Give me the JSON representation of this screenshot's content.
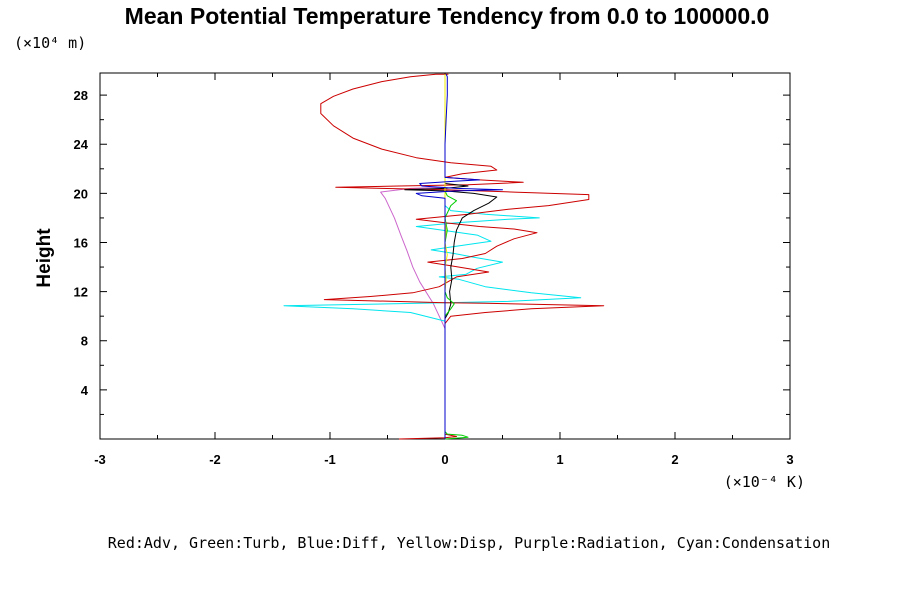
{
  "chart_data": {
    "type": "line",
    "title": "Mean Potential Temperature Tendency from 0.0 to 100000.0",
    "ylabel": "Height",
    "y_unit_label": "(×10⁴ m)",
    "x_unit_label": "(×10⁻⁴ K)",
    "legend_text": "Red:Adv, Green:Turb, Blue:Diff, Yellow:Disp, Purple:Radiation, Cyan:Condensation",
    "xlim": [
      -3,
      3
    ],
    "ylim": [
      0,
      29.8
    ],
    "x_ticks": [
      {
        "value": -3,
        "label": "-3"
      },
      {
        "value": -2,
        "label": "-2"
      },
      {
        "value": -1,
        "label": "-1"
      },
      {
        "value": 0,
        "label": "0"
      },
      {
        "value": 1,
        "label": "1"
      },
      {
        "value": 2,
        "label": "2"
      },
      {
        "value": 3,
        "label": "3"
      }
    ],
    "y_ticks": [
      {
        "value": 4,
        "label": "4"
      },
      {
        "value": 8,
        "label": "8"
      },
      {
        "value": 12,
        "label": "12"
      },
      {
        "value": 16,
        "label": "16"
      },
      {
        "value": 20,
        "label": "20"
      },
      {
        "value": 24,
        "label": "24"
      },
      {
        "value": 28,
        "label": "28"
      }
    ],
    "series": [
      {
        "name": "Purple:Radiation",
        "color": "#cc66cc",
        "points": [
          [
            0,
            0
          ],
          [
            0,
            9
          ],
          [
            -0.1,
            11
          ],
          [
            -0.22,
            12.8
          ],
          [
            -0.28,
            14
          ],
          [
            -0.33,
            15.3
          ],
          [
            -0.38,
            16.5
          ],
          [
            -0.44,
            18
          ],
          [
            -0.52,
            19.6
          ],
          [
            -0.56,
            20.1
          ],
          [
            -0.3,
            20.4
          ],
          [
            0,
            20.5
          ],
          [
            0,
            29.7
          ]
        ]
      },
      {
        "name": "Cyan:Condensation",
        "color": "#00e5ee",
        "points": [
          [
            0,
            0
          ],
          [
            0,
            9.6
          ],
          [
            -0.3,
            10.3
          ],
          [
            -0.8,
            10.6
          ],
          [
            -1.4,
            10.85
          ],
          [
            -0.5,
            11
          ],
          [
            0,
            11.1
          ],
          [
            0.55,
            11.2
          ],
          [
            1.18,
            11.5
          ],
          [
            0.75,
            11.9
          ],
          [
            0.35,
            12.4
          ],
          [
            0.12,
            13
          ],
          [
            -0.05,
            13.2
          ],
          [
            0.18,
            13.4
          ],
          [
            0.28,
            13.9
          ],
          [
            0.5,
            14.4
          ],
          [
            0.25,
            14.8
          ],
          [
            0.08,
            15.1
          ],
          [
            -0.12,
            15.4
          ],
          [
            0.18,
            15.8
          ],
          [
            0.4,
            16.1
          ],
          [
            0.28,
            16.6
          ],
          [
            0.05,
            16.9
          ],
          [
            -0.25,
            17.3
          ],
          [
            0.1,
            17.6
          ],
          [
            0.55,
            17.9
          ],
          [
            0.82,
            18
          ],
          [
            0.35,
            18.3
          ],
          [
            0.05,
            18.6
          ],
          [
            0,
            19
          ],
          [
            0,
            29.7
          ]
        ]
      },
      {
        "name": "Red:Adv",
        "color": "#cc0000",
        "points": [
          [
            -0.4,
            0
          ],
          [
            0,
            0.1
          ],
          [
            0.1,
            0.2
          ],
          [
            0,
            0.4
          ],
          [
            0,
            9.4
          ],
          [
            0.05,
            10
          ],
          [
            0.35,
            10.3
          ],
          [
            0.75,
            10.6
          ],
          [
            1.38,
            10.85
          ],
          [
            0.35,
            11.05
          ],
          [
            0,
            11.1
          ],
          [
            -1.05,
            11.35
          ],
          [
            -0.65,
            11.6
          ],
          [
            -0.28,
            11.9
          ],
          [
            -0.05,
            12.4
          ],
          [
            0.1,
            13.2
          ],
          [
            0.38,
            13.6
          ],
          [
            0.05,
            14.1
          ],
          [
            -0.15,
            14.4
          ],
          [
            0.15,
            14.7
          ],
          [
            0.35,
            15.1
          ],
          [
            0.45,
            15.7
          ],
          [
            0.6,
            16.3
          ],
          [
            0.8,
            16.8
          ],
          [
            0.6,
            17.1
          ],
          [
            0.3,
            17.3
          ],
          [
            0,
            17.6
          ],
          [
            -0.25,
            17.9
          ],
          [
            0.2,
            18.3
          ],
          [
            0.55,
            18.7
          ],
          [
            0.9,
            19
          ],
          [
            1.25,
            19.5
          ],
          [
            1.25,
            19.9
          ],
          [
            0.6,
            20.1
          ],
          [
            0,
            20.3
          ],
          [
            -0.55,
            20.4
          ],
          [
            -0.95,
            20.5
          ],
          [
            -0.4,
            20.6
          ],
          [
            0.2,
            20.7
          ],
          [
            0.68,
            20.9
          ],
          [
            0.3,
            21.1
          ],
          [
            0,
            21.3
          ],
          [
            0.15,
            21.6
          ],
          [
            0.45,
            21.9
          ],
          [
            0.4,
            22.2
          ],
          [
            0.05,
            22.5
          ],
          [
            -0.25,
            22.9
          ],
          [
            -0.55,
            23.6
          ],
          [
            -0.8,
            24.5
          ],
          [
            -0.97,
            25.5
          ],
          [
            -1.08,
            26.5
          ],
          [
            -1.08,
            27.3
          ],
          [
            -0.97,
            27.9
          ],
          [
            -0.8,
            28.5
          ],
          [
            -0.55,
            29.1
          ],
          [
            -0.3,
            29.5
          ],
          [
            -0.08,
            29.7
          ],
          [
            0.03,
            29.7
          ]
        ]
      },
      {
        "name": "Black",
        "color": "#000000",
        "points": [
          [
            0,
            0
          ],
          [
            0,
            9.8
          ],
          [
            0.03,
            10.3
          ],
          [
            0.05,
            11
          ],
          [
            0.04,
            12
          ],
          [
            0.06,
            13
          ],
          [
            0.05,
            14
          ],
          [
            0.07,
            15
          ],
          [
            0.08,
            16
          ],
          [
            0.1,
            17
          ],
          [
            0.15,
            18
          ],
          [
            0.25,
            18.6
          ],
          [
            0.38,
            19.2
          ],
          [
            0.45,
            19.7
          ],
          [
            0.25,
            20
          ],
          [
            0,
            20.2
          ],
          [
            -0.35,
            20.3
          ],
          [
            0,
            20.4
          ],
          [
            0.2,
            20.6
          ],
          [
            0,
            20.8
          ],
          [
            0,
            29.7
          ]
        ]
      },
      {
        "name": "Green:Turb",
        "color": "#00cc00",
        "points": [
          [
            0,
            0
          ],
          [
            0.2,
            0.15
          ],
          [
            0.15,
            0.3
          ],
          [
            0.02,
            0.4
          ],
          [
            0,
            0.6
          ],
          [
            0,
            10
          ],
          [
            0.05,
            10.6
          ],
          [
            0.08,
            11
          ],
          [
            0.02,
            11.5
          ],
          [
            0,
            12
          ],
          [
            0,
            16
          ],
          [
            0.02,
            17
          ],
          [
            0,
            18
          ],
          [
            0.05,
            19
          ],
          [
            0.1,
            19.4
          ],
          [
            0.02,
            19.8
          ],
          [
            0,
            20.2
          ],
          [
            0,
            29.7
          ]
        ]
      },
      {
        "name": "Yellow:Disp",
        "color": "#eeee00",
        "points": [
          [
            0,
            0
          ],
          [
            0,
            11
          ],
          [
            0,
            12
          ],
          [
            0.01,
            13
          ],
          [
            0,
            14
          ],
          [
            0.02,
            15
          ],
          [
            0,
            16
          ],
          [
            0.01,
            17
          ],
          [
            0,
            18
          ],
          [
            0,
            29.7
          ]
        ]
      },
      {
        "name": "Blue:Diff",
        "color": "#0000cc",
        "points": [
          [
            0,
            0
          ],
          [
            0,
            19.6
          ],
          [
            -0.2,
            19.8
          ],
          [
            -0.25,
            20
          ],
          [
            0.1,
            20.2
          ],
          [
            0.5,
            20.3
          ],
          [
            0.1,
            20.4
          ],
          [
            -0.2,
            20.6
          ],
          [
            -0.22,
            20.8
          ],
          [
            0.1,
            21
          ],
          [
            0.3,
            21.1
          ],
          [
            0,
            21.3
          ],
          [
            0,
            24
          ],
          [
            0.01,
            26
          ],
          [
            0.02,
            28
          ],
          [
            0.02,
            29.5
          ],
          [
            0.01,
            29.7
          ]
        ]
      }
    ]
  }
}
